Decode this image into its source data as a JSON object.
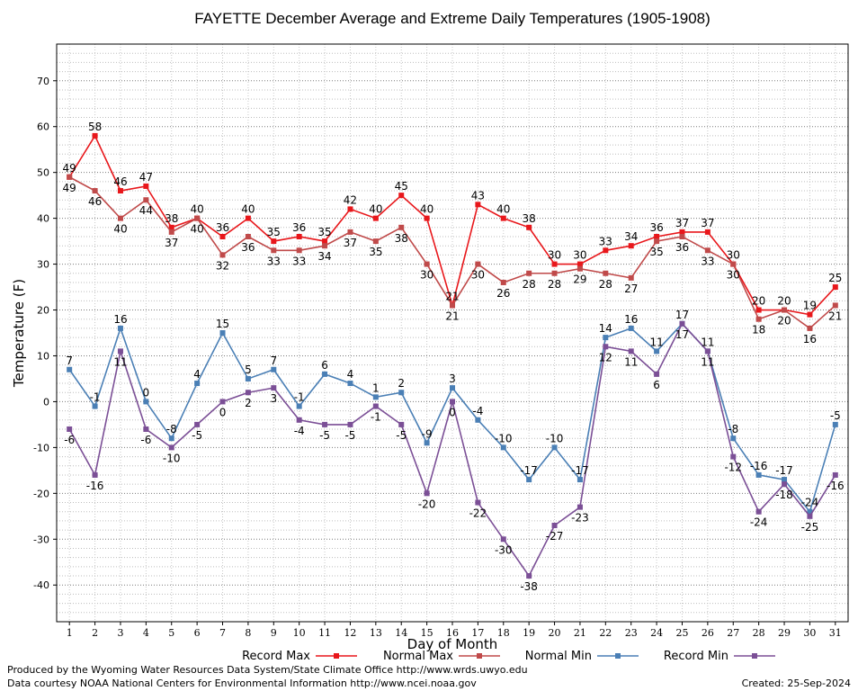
{
  "chart_data": {
    "type": "line",
    "title": "FAYETTE December Average and Extreme Daily Temperatures (1905-1908)",
    "xlabel": "Day of Month",
    "ylabel": "Temperature (F)",
    "x": [
      1,
      2,
      3,
      4,
      5,
      6,
      7,
      8,
      9,
      10,
      11,
      12,
      13,
      14,
      15,
      16,
      17,
      18,
      19,
      20,
      21,
      22,
      23,
      24,
      25,
      26,
      27,
      28,
      29,
      30,
      31
    ],
    "ylim": [
      -48,
      78
    ],
    "yticks": [
      -40,
      -30,
      -20,
      -10,
      0,
      10,
      20,
      30,
      40,
      50,
      60,
      70
    ],
    "grid": true,
    "legend_position": "bottom",
    "series": [
      {
        "name": "Record Max",
        "color": "#e8171b",
        "values": [
          49,
          58,
          46,
          47,
          38,
          40,
          36,
          40,
          35,
          36,
          35,
          42,
          40,
          45,
          40,
          21,
          43,
          40,
          38,
          30,
          30,
          33,
          34,
          36,
          37,
          37,
          30,
          20,
          20,
          19,
          25
        ]
      },
      {
        "name": "Normal Max",
        "color": "#c04a4a",
        "values": [
          49,
          46,
          40,
          44,
          37,
          40,
          32,
          36,
          33,
          33,
          34,
          37,
          35,
          38,
          30,
          21,
          30,
          26,
          28,
          28,
          29,
          28,
          27,
          35,
          36,
          33,
          30,
          18,
          20,
          16,
          21
        ]
      },
      {
        "name": "Normal Min",
        "color": "#4a7fb5",
        "values": [
          7,
          -1,
          16,
          0,
          -8,
          4,
          15,
          5,
          7,
          -1,
          6,
          4,
          1,
          2,
          -9,
          3,
          -4,
          -10,
          -17,
          -10,
          -17,
          14,
          16,
          11,
          17,
          11,
          -8,
          -16,
          -17,
          -24,
          -5
        ]
      },
      {
        "name": "Record Min",
        "color": "#7b4f96",
        "values": [
          -6,
          -16,
          11,
          -6,
          -10,
          -5,
          0,
          2,
          3,
          -4,
          -5,
          -5,
          -1,
          -5,
          -20,
          0,
          -22,
          -30,
          -38,
          -27,
          -23,
          12,
          11,
          6,
          17,
          11,
          -12,
          -24,
          -18,
          -25,
          -16
        ]
      }
    ]
  },
  "footer": {
    "produced_by": "Produced by the Wyoming Water Resources Data System/State Climate Office http://www.wrds.uwyo.edu",
    "courtesy": "Data courtesy NOAA National Centers for Environmental Information http://www.ncei.noaa.gov",
    "created": "Created:  25-Sep-2024"
  }
}
